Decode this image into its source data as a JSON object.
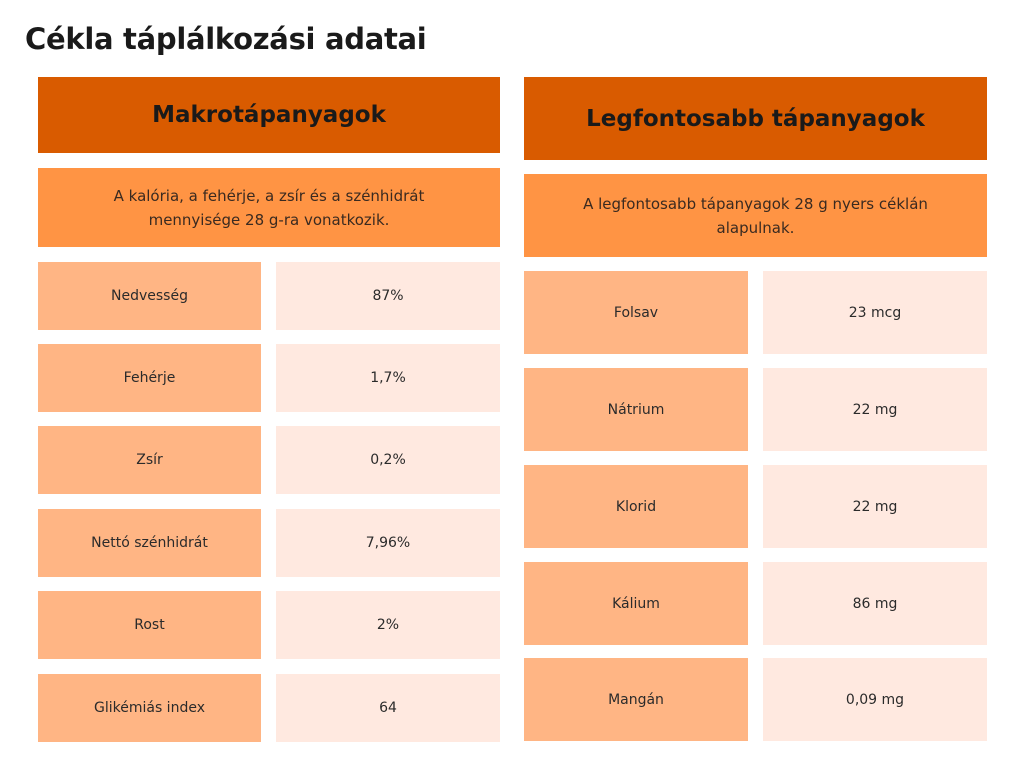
{
  "page_title": "Cékla táplálkozási adatai",
  "macros": {
    "header": "Makrotápanyagok",
    "note": "A kalória, a fehérje, a zsír és a szénhidrát mennyisége 28 g-ra vonatkozik.",
    "rows": [
      {
        "label": "Nedvesség",
        "value": "87%"
      },
      {
        "label": "Fehérje",
        "value": "1,7%"
      },
      {
        "label": "Zsír",
        "value": "0,2%"
      },
      {
        "label": "Nettó szénhidrát",
        "value": "7,96%"
      },
      {
        "label": "Rost",
        "value": "2%"
      },
      {
        "label": "Glikémiás index",
        "value": "64"
      }
    ]
  },
  "nutrients": {
    "header": "Legfontosabb tápanyagok",
    "note": "A legfontosabb tápanyagok 28 g nyers céklán alapulnak.",
    "rows": [
      {
        "label": "Folsav",
        "value": "23 mcg"
      },
      {
        "label": "Nátrium",
        "value": "22 mg"
      },
      {
        "label": "Klorid",
        "value": "22 mg"
      },
      {
        "label": "Kálium",
        "value": "86 mg"
      },
      {
        "label": "Mangán",
        "value": "0,09 mg"
      }
    ]
  }
}
